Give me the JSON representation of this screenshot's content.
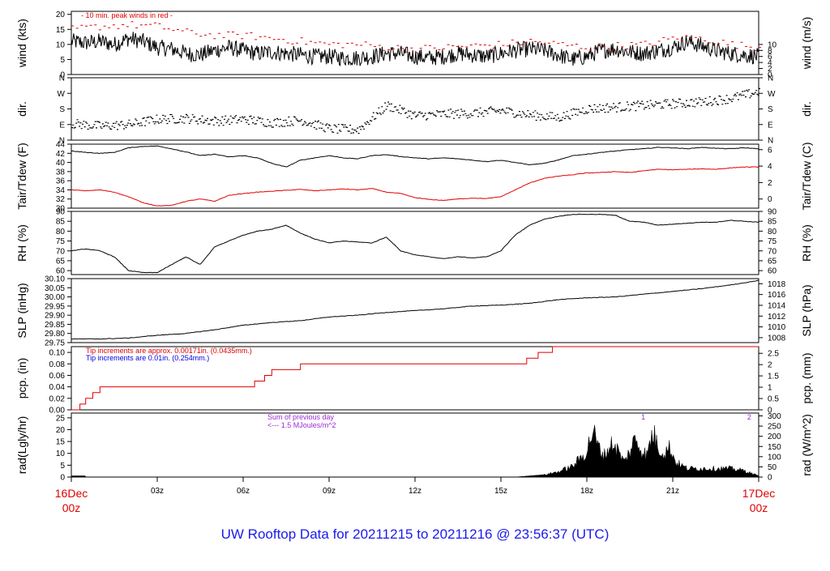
{
  "title": "UW Rooftop Data for 20211215  to  20211216 @ 23:56:37  (UTC)",
  "x_axis": {
    "start_label": [
      "16Dec",
      "00z"
    ],
    "end_label": [
      "17Dec",
      "00z"
    ],
    "ticks": [
      {
        "hour": 3,
        "label": "03z"
      },
      {
        "hour": 6,
        "label": "06z"
      },
      {
        "hour": 9,
        "label": "09z"
      },
      {
        "hour": 12,
        "label": "12z"
      },
      {
        "hour": 15,
        "label": "15z"
      },
      {
        "hour": 18,
        "label": "18z"
      },
      {
        "hour": 21,
        "label": "21z"
      }
    ]
  },
  "colors": {
    "main": "#000000",
    "red": "#e00000",
    "blue": "#0000e0",
    "purple": "#9a2bd6",
    "title": "#1a1aee"
  },
  "chart_data": [
    {
      "id": "wind",
      "type": "line",
      "ylabel": "wind (kts)",
      "ylabel_right": "wind (m/s)",
      "ylim": [
        0,
        21
      ],
      "yticks": [
        0,
        5,
        10,
        15,
        20
      ],
      "yticks_right": [
        {
          "value": 0,
          "label": "0"
        },
        {
          "value": 2,
          "label": "2"
        },
        {
          "value": 4,
          "label": "4"
        },
        {
          "value": 6,
          "label": "6"
        },
        {
          "value": 8,
          "label": "8"
        },
        {
          "value": 10,
          "label": "10"
        }
      ],
      "right_factor": 1.944,
      "annotation": "- 10 min. peak winds in red -",
      "series": [
        {
          "color": "#000000",
          "style": "noisy",
          "x": [
            0,
            0.5,
            1,
            1.5,
            2,
            2.5,
            3,
            3.5,
            4,
            4.5,
            5,
            5.5,
            6,
            6.5,
            7,
            7.5,
            8,
            8.5,
            9,
            9.5,
            10,
            10.5,
            11,
            11.5,
            12,
            12.5,
            13,
            13.5,
            14,
            14.5,
            15,
            15.5,
            16,
            16.5,
            17,
            17.5,
            18,
            18.5,
            19,
            19.5,
            20,
            20.5,
            21,
            21.5,
            22,
            22.5,
            23,
            23.5,
            24
          ],
          "y": [
            11,
            10.5,
            11,
            10,
            12,
            11,
            9,
            8.5,
            7,
            6.5,
            8,
            9,
            8,
            7,
            7.5,
            7,
            6.5,
            6,
            6,
            5.5,
            5.5,
            6,
            7,
            7,
            6,
            5.5,
            6,
            7,
            6.5,
            6,
            7,
            8,
            8.5,
            8,
            6.5,
            5,
            6,
            8,
            8.5,
            7.5,
            7,
            8,
            9,
            11,
            9.5,
            8,
            7,
            6.5,
            6
          ]
        },
        {
          "color": "#e00000",
          "style": "dashes",
          "x": [
            0,
            1,
            2,
            3,
            4,
            5,
            6,
            7,
            8,
            9,
            10,
            11,
            12,
            13,
            14,
            15,
            16,
            17,
            18,
            19,
            20,
            21,
            22,
            23,
            24
          ],
          "y": [
            15,
            16,
            16.5,
            16,
            14,
            13,
            13,
            12,
            11,
            10,
            10,
            9,
            8.5,
            9,
            9.5,
            10,
            11,
            10,
            9,
            9.5,
            10,
            12,
            12,
            10,
            9
          ]
        }
      ]
    },
    {
      "id": "direction",
      "type": "scatter",
      "ylabel": "dir.",
      "ylabel_right": "dir.",
      "ylim": [
        0,
        360
      ],
      "yticks_left": [
        {
          "value": 0,
          "label": "N"
        },
        {
          "value": 90,
          "label": "E"
        },
        {
          "value": 180,
          "label": "S"
        },
        {
          "value": 270,
          "label": "W"
        },
        {
          "value": 360,
          "label": "N"
        }
      ],
      "yticks_right": [
        {
          "value": 0,
          "label": "N"
        },
        {
          "value": 90,
          "label": "E"
        },
        {
          "value": 180,
          "label": "S"
        },
        {
          "value": 270,
          "label": "W"
        },
        {
          "value": 360,
          "label": "N"
        }
      ],
      "series": [
        {
          "color": "#000000",
          "style": "dots",
          "x": [
            0,
            1,
            2,
            3,
            4,
            5,
            6,
            7,
            8,
            9,
            10,
            11,
            12,
            13,
            14,
            15,
            16,
            17,
            18,
            19,
            20,
            21,
            22,
            23,
            24
          ],
          "y": [
            95,
            80,
            90,
            120,
            125,
            110,
            120,
            100,
            115,
            65,
            60,
            200,
            140,
            150,
            155,
            170,
            145,
            130,
            180,
            190,
            200,
            210,
            220,
            240,
            280
          ]
        }
      ]
    },
    {
      "id": "temperature",
      "type": "line",
      "ylabel": "Tair/Tdew (F)",
      "ylabel_right": "Tair/Tdew (C)",
      "ylim": [
        30,
        44
      ],
      "yticks": [
        30,
        32,
        34,
        36,
        38,
        40,
        42,
        44
      ],
      "yticks_right": [
        {
          "value": 32,
          "label": "0"
        },
        {
          "value": 35.6,
          "label": "2"
        },
        {
          "value": 39.2,
          "label": "4"
        },
        {
          "value": 42.8,
          "label": "6"
        }
      ],
      "series": [
        {
          "color": "#000000",
          "style": "line",
          "x": [
            0,
            0.5,
            1,
            1.5,
            2,
            2.5,
            3,
            3.5,
            4,
            4.5,
            5,
            5.5,
            6,
            6.5,
            7,
            7.5,
            8,
            8.5,
            9,
            9.5,
            10,
            10.5,
            11,
            11.5,
            12,
            12.5,
            13,
            13.5,
            14,
            14.5,
            15,
            15.5,
            16,
            16.5,
            17,
            17.5,
            18,
            18.5,
            19,
            19.5,
            20,
            20.5,
            21,
            21.5,
            22,
            22.5,
            23,
            23.5,
            24
          ],
          "y": [
            42.5,
            42.2,
            42,
            42.2,
            43.2,
            43.5,
            43.6,
            43,
            42.3,
            41.5,
            41.8,
            41.2,
            41.5,
            41,
            39.8,
            39,
            40.5,
            41,
            41.5,
            41,
            40.8,
            41.5,
            41.7,
            41.3,
            41,
            40.8,
            41,
            40.8,
            40.5,
            40.2,
            40.5,
            40,
            39.5,
            39.8,
            40.5,
            41.5,
            41.8,
            42.2,
            42.5,
            42.8,
            43,
            43.3,
            43.2,
            43,
            43.3,
            43.1,
            43,
            43.2,
            43
          ]
        },
        {
          "color": "#e00000",
          "style": "line",
          "x": [
            0,
            0.5,
            1,
            1.5,
            2,
            2.5,
            3,
            3.5,
            4,
            4.5,
            5,
            5.5,
            6,
            6.5,
            7,
            7.5,
            8,
            8.5,
            9,
            9.5,
            10,
            10.5,
            11,
            11.5,
            12,
            12.5,
            13,
            13.5,
            14,
            14.5,
            15,
            15.5,
            16,
            16.5,
            17,
            17.5,
            18,
            18.5,
            19,
            19.5,
            20,
            20.5,
            21,
            21.5,
            22,
            22.5,
            23,
            23.5,
            24
          ],
          "y": [
            34,
            33.8,
            34,
            33.5,
            32.5,
            31.2,
            30.5,
            30.6,
            31.5,
            32,
            31.5,
            32.8,
            33.2,
            33.5,
            33.7,
            33.9,
            34.1,
            33.8,
            34,
            34.2,
            34,
            34.3,
            33.5,
            33.2,
            32.3,
            31.9,
            31.7,
            32,
            32.2,
            32.1,
            32.5,
            34,
            35.5,
            36.5,
            37,
            37.3,
            37.7,
            37.8,
            38,
            37.8,
            38.2,
            38.5,
            38.4,
            38.5,
            38.6,
            38.5,
            38.8,
            39,
            39
          ]
        }
      ]
    },
    {
      "id": "humidity",
      "type": "line",
      "ylabel": "RH (%)",
      "ylabel_right": "RH (%)",
      "ylim": [
        58,
        90
      ],
      "yticks": [
        60,
        65,
        70,
        75,
        80,
        85,
        90
      ],
      "yticks_right": [
        {
          "value": 60,
          "label": "60"
        },
        {
          "value": 65,
          "label": "65"
        },
        {
          "value": 70,
          "label": "70"
        },
        {
          "value": 75,
          "label": "75"
        },
        {
          "value": 80,
          "label": "80"
        },
        {
          "value": 85,
          "label": "85"
        },
        {
          "value": 90,
          "label": "90"
        }
      ],
      "series": [
        {
          "color": "#000000",
          "style": "line",
          "x": [
            0,
            0.5,
            1,
            1.5,
            2,
            2.5,
            3,
            3.5,
            4,
            4.5,
            5,
            5.5,
            6,
            6.5,
            7,
            7.5,
            8,
            8.5,
            9,
            9.5,
            10,
            10.5,
            11,
            11.5,
            12,
            12.5,
            13,
            13.5,
            14,
            14.5,
            15,
            15.5,
            16,
            16.5,
            17,
            17.5,
            18,
            18.5,
            19,
            19.5,
            20,
            20.5,
            21,
            21.5,
            22,
            22.5,
            23,
            23.5,
            24
          ],
          "y": [
            70,
            71,
            70,
            67,
            60,
            59,
            59,
            63,
            67,
            63,
            72,
            75,
            78,
            80,
            81,
            83,
            79,
            76,
            74,
            75,
            74.5,
            74,
            77,
            70,
            68,
            67,
            66,
            67,
            66.5,
            67,
            70,
            78,
            83,
            86,
            87.5,
            88.5,
            88.5,
            88.5,
            88,
            85,
            84.5,
            83,
            83.5,
            84,
            84.5,
            84.5,
            85.5,
            85,
            84.5
          ]
        }
      ]
    },
    {
      "id": "pressure",
      "type": "line",
      "ylabel": "SLP (inHg)",
      "ylabel_right": "SLP (hPa)",
      "ylim": [
        29.75,
        30.1
      ],
      "yticks": [
        29.75,
        29.8,
        29.85,
        29.9,
        29.95,
        30.0,
        30.05,
        30.1
      ],
      "ytick_format": "fixed2",
      "yticks_right": [
        {
          "value": 29.777,
          "label": "1008"
        },
        {
          "value": 29.836,
          "label": "1010"
        },
        {
          "value": 29.895,
          "label": "1012"
        },
        {
          "value": 29.954,
          "label": "1014"
        },
        {
          "value": 30.013,
          "label": "1016"
        },
        {
          "value": 30.072,
          "label": "1018"
        }
      ],
      "series": [
        {
          "color": "#000000",
          "style": "line",
          "x": [
            0,
            1,
            2,
            3,
            4,
            5,
            6,
            7,
            8,
            9,
            10,
            11,
            12,
            13,
            14,
            15,
            16,
            17,
            18,
            19,
            20,
            21,
            22,
            23,
            24
          ],
          "y": [
            29.77,
            29.77,
            29.775,
            29.79,
            29.8,
            29.82,
            29.845,
            29.86,
            29.87,
            29.89,
            29.9,
            29.915,
            29.925,
            29.935,
            29.95,
            29.955,
            29.965,
            29.985,
            29.995,
            30.0,
            30.015,
            30.03,
            30.045,
            30.065,
            30.09
          ]
        }
      ]
    },
    {
      "id": "precipitation",
      "type": "line",
      "ylabel": "pcp. (in)",
      "ylabel_right": "pcp. (mm)",
      "ylim": [
        0,
        0.11
      ],
      "yticks": [
        0,
        0.02,
        0.04,
        0.06,
        0.08,
        0.1
      ],
      "ytick_format": "fixed2",
      "yticks_right": [
        {
          "value": 0,
          "label": "0"
        },
        {
          "value": 0.0197,
          "label": "0.5"
        },
        {
          "value": 0.0394,
          "label": "1"
        },
        {
          "value": 0.0591,
          "label": "1.5"
        },
        {
          "value": 0.0787,
          "label": "2"
        },
        {
          "value": 0.0984,
          "label": "2.5"
        }
      ],
      "annotations": [
        {
          "text": "Tip increments are approx. 0.00171in. (0.0435mm.)",
          "color": "#e00000"
        },
        {
          "text": "Tip increments are 0.01in. (0.254mm.)",
          "color": "#0000e0"
        }
      ],
      "series": [
        {
          "color": "#e00000",
          "style": "step",
          "x": [
            0,
            0.3,
            0.5,
            0.75,
            1.0,
            3.0,
            6.0,
            6.4,
            6.75,
            7.0,
            7.5,
            8.0,
            9.0,
            15.5,
            15.9,
            16.3,
            16.8,
            24
          ],
          "y": [
            0,
            0.01,
            0.02,
            0.03,
            0.04,
            0.04,
            0.04,
            0.05,
            0.06,
            0.07,
            0.07,
            0.08,
            0.08,
            0.08,
            0.09,
            0.1,
            0.11,
            0.11
          ]
        }
      ]
    },
    {
      "id": "radiation",
      "type": "area",
      "ylabel": "rad(Lgly/hr)",
      "ylabel_right": "rad (W/m^2)",
      "ylim": [
        0,
        27
      ],
      "yticks": [
        0,
        5,
        10,
        15,
        20,
        25
      ],
      "yticks_right": [
        {
          "value": 0,
          "label": "0"
        },
        {
          "value": 4.3,
          "label": "50"
        },
        {
          "value": 8.6,
          "label": "100"
        },
        {
          "value": 12.9,
          "label": "150"
        },
        {
          "value": 17.2,
          "label": "200"
        },
        {
          "value": 21.5,
          "label": "250"
        },
        {
          "value": 25.8,
          "label": "300"
        }
      ],
      "annotations": [
        {
          "text": "Sum of previous day",
          "color": "#9a2bd6"
        },
        {
          "text": "<--- 1.5 MJoules/m^2",
          "color": "#9a2bd6"
        },
        {
          "text": "1",
          "color": "#9a2bd6",
          "x": 19.9
        },
        {
          "text": "2",
          "color": "#9a2bd6",
          "x": 23.6
        }
      ],
      "series": [
        {
          "color": "#000000",
          "style": "fill",
          "x": [
            0,
            0.5,
            0.51,
            15.5,
            16.0,
            16.5,
            17.0,
            17.5,
            18.0,
            18.2,
            18.4,
            18.6,
            18.9,
            19.1,
            19.3,
            19.5,
            19.7,
            19.9,
            20.1,
            20.3,
            20.5,
            20.7,
            20.9,
            21.1,
            21.5,
            22.0,
            22.5,
            23.0,
            23.5,
            24
          ],
          "y": [
            0.5,
            0.5,
            0,
            0,
            0.5,
            1.0,
            2.5,
            5,
            12,
            22,
            14,
            10,
            16,
            12,
            7,
            12,
            18,
            13,
            10,
            21,
            14,
            11,
            14,
            7,
            4,
            4,
            4,
            4,
            3,
            0.5
          ]
        }
      ]
    }
  ]
}
